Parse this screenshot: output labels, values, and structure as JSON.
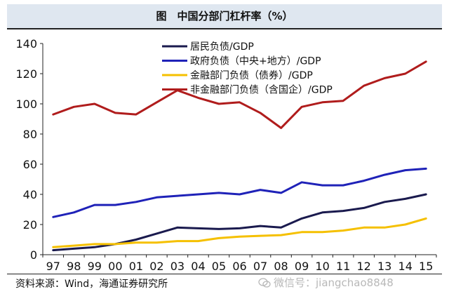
{
  "chart_data": {
    "type": "line",
    "title": "图　中国分部门杠杆率（%）",
    "xlabel": "",
    "ylabel": "",
    "categories": [
      "97",
      "98",
      "99",
      "00",
      "01",
      "02",
      "03",
      "04",
      "05",
      "06",
      "07",
      "08",
      "09",
      "10",
      "11",
      "12",
      "13",
      "14",
      "15"
    ],
    "ylim": [
      0,
      140
    ],
    "yticks": [
      0,
      20,
      40,
      60,
      80,
      100,
      120,
      140
    ],
    "grid": false,
    "legend_position": "top-center",
    "series": [
      {
        "name": "居民负债/GDP",
        "color": "#1a1a4e",
        "values": [
          3,
          4,
          5,
          7,
          10,
          14,
          18,
          17.5,
          17,
          17.5,
          19,
          18,
          24,
          28,
          29,
          31,
          35,
          37,
          40
        ]
      },
      {
        "name": "政府负债（中央+地方）/GDP",
        "color": "#1f22b8",
        "values": [
          25,
          28,
          33,
          33,
          35,
          38,
          39,
          40,
          41,
          40,
          43,
          41,
          48,
          46,
          46,
          49,
          53,
          56,
          57
        ]
      },
      {
        "name": "金融部门负债（债券）/GDP",
        "color": "#f5c000",
        "values": [
          5,
          6,
          7,
          7,
          8,
          8,
          9,
          9,
          11,
          12,
          12.5,
          13,
          15,
          15,
          16,
          18,
          18,
          20,
          24
        ]
      },
      {
        "name": "非金融部门负债（含国企）/GDP",
        "color": "#b01c1c",
        "values": [
          93,
          98,
          100,
          94,
          93,
          101,
          109,
          104,
          100,
          101,
          94,
          84,
          98,
          101,
          102,
          112,
          117,
          120,
          128
        ]
      }
    ]
  },
  "footer": {
    "source": "资料来源：Wind，海通证券研究所",
    "watermark": "微信号：jiangchao8848"
  }
}
